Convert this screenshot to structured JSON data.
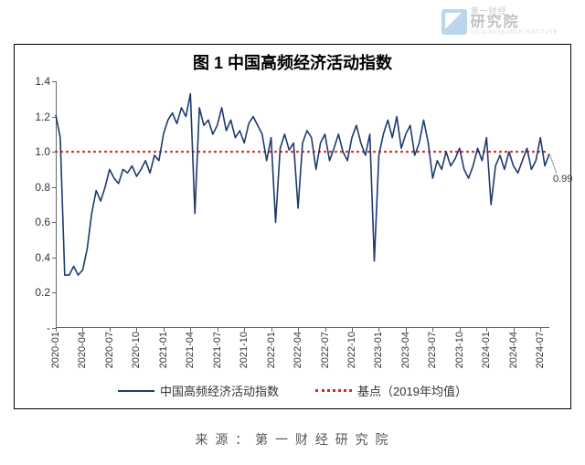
{
  "watermark": {
    "line1": "第一财经",
    "line2": "研究院",
    "line3": "YICAI RESEARCH INSTITUTE"
  },
  "chart": {
    "type": "line",
    "title": "图 1 中国高频经济活动指数",
    "title_fontsize": 18,
    "background_color": "#ffffff",
    "border_color": "#000000",
    "ylim": [
      0,
      1.4
    ],
    "ytick_step": 0.2,
    "ytick_labels": [
      "-",
      "0.2",
      "0.4",
      "0.6",
      "0.8",
      "1.0",
      "1.2",
      "1.4"
    ],
    "yticks": [
      0,
      0.2,
      0.4,
      0.6,
      0.8,
      1.0,
      1.2,
      1.4
    ],
    "xtick_labels": [
      "2020-01",
      "2020-04",
      "2020-07",
      "2020-10",
      "2021-01",
      "2021-04",
      "2021-07",
      "2021-10",
      "2022-01",
      "2022-04",
      "2022-07",
      "2022-10",
      "2023-01",
      "2023-04",
      "2023-07",
      "2023-10",
      "2024-01",
      "2024-04",
      "2024-07"
    ],
    "xtick_positions": [
      0,
      3,
      6,
      9,
      12,
      15,
      18,
      21,
      24,
      27,
      30,
      33,
      36,
      39,
      42,
      45,
      48,
      51,
      54
    ],
    "x_range": 55,
    "label_fontsize": 12,
    "x_label_rotation": -90,
    "series": {
      "main": {
        "label": "中国高频经济活动指数",
        "color": "#1f3a6e",
        "line_width": 1.6,
        "values": [
          1.21,
          1.08,
          0.3,
          0.3,
          0.35,
          0.3,
          0.33,
          0.45,
          0.65,
          0.78,
          0.72,
          0.8,
          0.9,
          0.85,
          0.82,
          0.9,
          0.88,
          0.92,
          0.86,
          0.9,
          0.95,
          0.88,
          0.98,
          0.95,
          1.1,
          1.18,
          1.22,
          1.16,
          1.25,
          1.2,
          1.33,
          0.65,
          1.25,
          1.15,
          1.18,
          1.1,
          1.15,
          1.25,
          1.12,
          1.18,
          1.08,
          1.12,
          1.05,
          1.16,
          1.2,
          1.15,
          1.1,
          0.95,
          1.08,
          0.6,
          1.02,
          1.1,
          1.01,
          1.05,
          0.68,
          1.05,
          1.12,
          1.08,
          0.9,
          1.05,
          1.1,
          0.95,
          1.02,
          1.1,
          1.0,
          0.95,
          1.08,
          1.15,
          1.05,
          0.98,
          1.1,
          0.38,
          0.98,
          1.1,
          1.18,
          1.08,
          1.2,
          1.02,
          1.1,
          1.15,
          0.98,
          1.05,
          1.18,
          1.05,
          0.85,
          0.95,
          0.9,
          1.0,
          0.92,
          0.96,
          1.02,
          0.9,
          0.85,
          0.92,
          1.02,
          0.95,
          1.08,
          0.7,
          0.92,
          0.98,
          0.9,
          1.0,
          0.92,
          0.88,
          0.95,
          1.02,
          0.9,
          0.95,
          1.08,
          0.92,
          0.99
        ]
      },
      "baseline": {
        "label": "基点（2019年均值）",
        "color": "#d62728",
        "line_style": "dotted",
        "line_width": 2.2,
        "value": 1.0
      }
    },
    "end_annotation": {
      "text": "0.99",
      "value": 0.99,
      "color": "#333333",
      "fontsize": 11,
      "connector_color": "#999999"
    },
    "legend": {
      "position": "bottom",
      "fontsize": 13
    }
  },
  "source": "来 源 ： 第 一 财 经 研 究 院"
}
